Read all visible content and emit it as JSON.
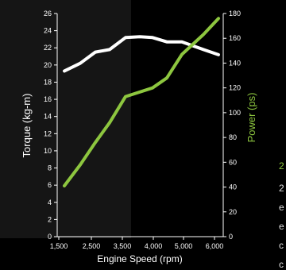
{
  "chart_data": {
    "type": "line",
    "xlabel": "Engine Speed (rpm)",
    "ylabel_left": "Torque (kg-m)",
    "ylabel_right": "Power (ps)",
    "x_ticks": [
      1500,
      2500,
      3500,
      4000,
      5000,
      6000
    ],
    "x_tick_labels": [
      "1,500",
      "2,500",
      "3,500",
      "4,000",
      "5,000",
      "6,000"
    ],
    "xlim": [
      1500,
      6000
    ],
    "ylim_left": [
      0,
      26
    ],
    "ylim_right": [
      0,
      180
    ],
    "y_ticks_left": [
      0,
      2,
      4,
      6,
      8,
      10,
      12,
      14,
      16,
      18,
      20,
      22,
      24,
      26
    ],
    "y_ticks_right": [
      0,
      20,
      40,
      60,
      80,
      100,
      120,
      140,
      160,
      180
    ],
    "series": [
      {
        "axis": "left",
        "color": "#ffffff",
        "points": [
          [
            1500,
            19.3
          ],
          [
            2000,
            20.2
          ],
          [
            2500,
            21.5
          ],
          [
            3000,
            21.8
          ],
          [
            3500,
            23.2
          ],
          [
            3750,
            23.3
          ],
          [
            4000,
            23.2
          ],
          [
            4500,
            22.7
          ],
          [
            5000,
            22.7
          ],
          [
            5500,
            21.8
          ],
          [
            6000,
            21.2
          ]
        ]
      },
      {
        "axis": "right",
        "color": "#8dc63f",
        "points": [
          [
            1500,
            41
          ],
          [
            2000,
            58
          ],
          [
            2500,
            76
          ],
          [
            3000,
            92
          ],
          [
            3500,
            113
          ],
          [
            4000,
            120
          ],
          [
            4500,
            128
          ],
          [
            5000,
            147
          ],
          [
            5500,
            163
          ],
          [
            6000,
            176
          ]
        ]
      }
    ]
  },
  "side_text": {
    "heading": "2",
    "lines": [
      "2",
      "e",
      "e",
      "c",
      "c"
    ]
  },
  "colors": {
    "background": "#000000",
    "plot_background": "#151515",
    "torque_line": "#ffffff",
    "power_line": "#8dc63f",
    "axis": "#ffffff"
  }
}
